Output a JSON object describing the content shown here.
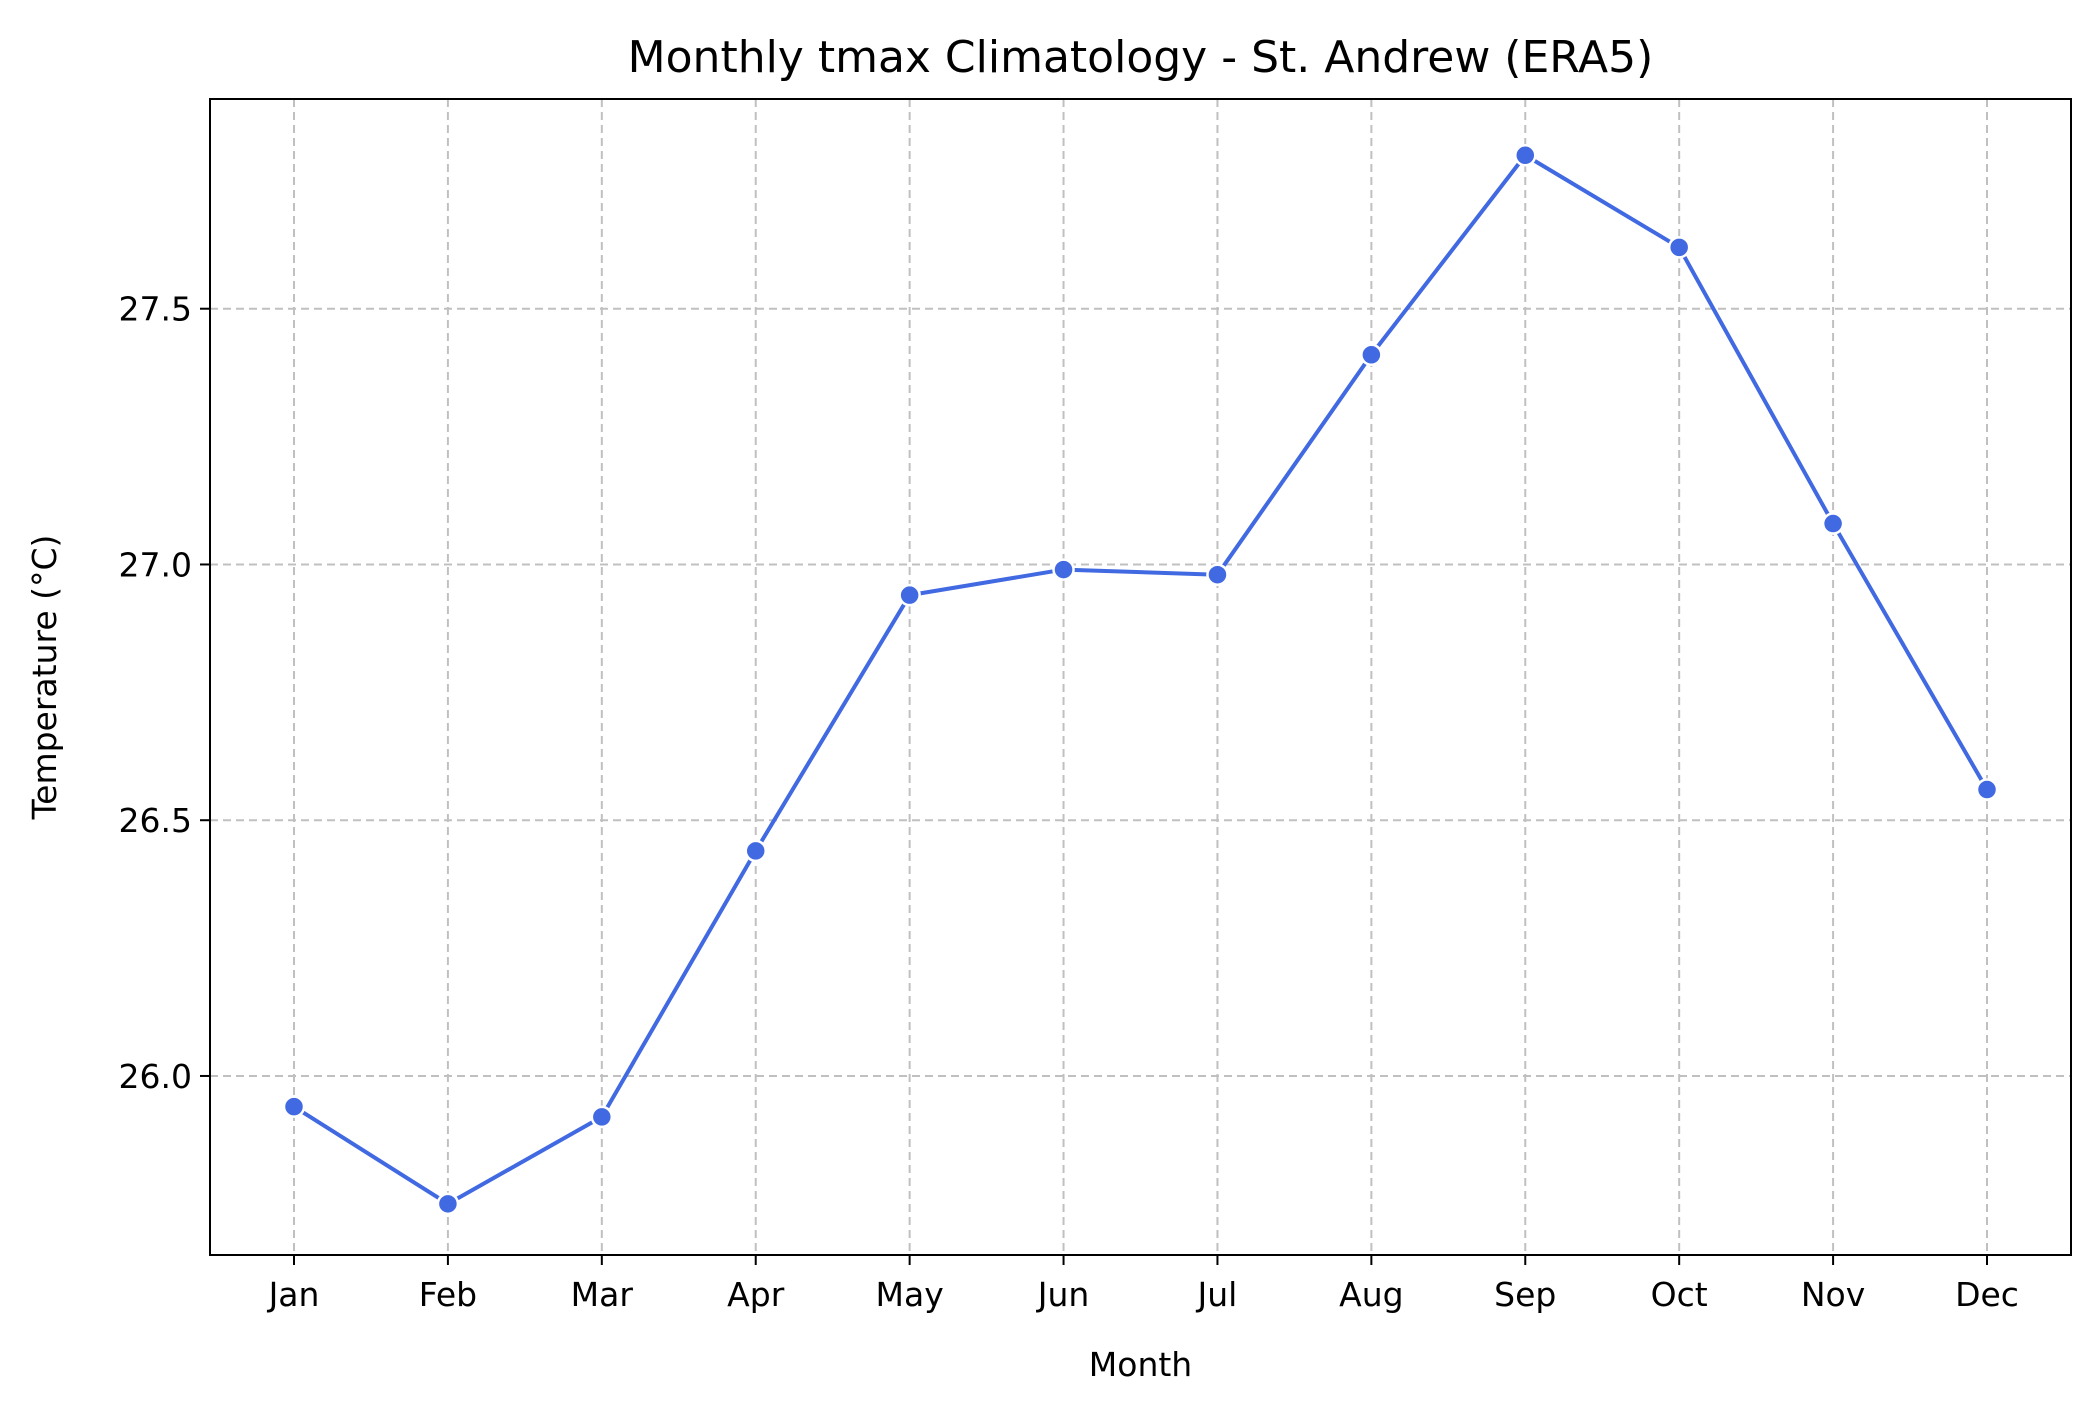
{
  "chart_data": {
    "type": "line",
    "title": "Monthly tmax Climatology - St. Andrew (ERA5)",
    "xlabel": "Month",
    "ylabel": "Temperature (°C)",
    "categories": [
      "Jan",
      "Feb",
      "Mar",
      "Apr",
      "May",
      "Jun",
      "Jul",
      "Aug",
      "Sep",
      "Oct",
      "Nov",
      "Dec"
    ],
    "series": [
      {
        "values": [
          25.94,
          25.75,
          25.92,
          26.44,
          26.94,
          26.99,
          26.98,
          27.41,
          27.8,
          27.62,
          27.08,
          26.56
        ]
      }
    ],
    "ylim": [
      25.65,
      27.91
    ],
    "yticks": [
      26.0,
      26.5,
      27.0,
      27.5
    ],
    "ytick_labels": [
      "26.0",
      "26.5",
      "27.0",
      "27.5"
    ],
    "grid": true,
    "grid_style": "dashed",
    "legend": "none",
    "colors": {
      "line": "#4169e1",
      "marker_edge": "#ffffff",
      "grid": "#c0c0c0",
      "axes": "#000000"
    }
  }
}
